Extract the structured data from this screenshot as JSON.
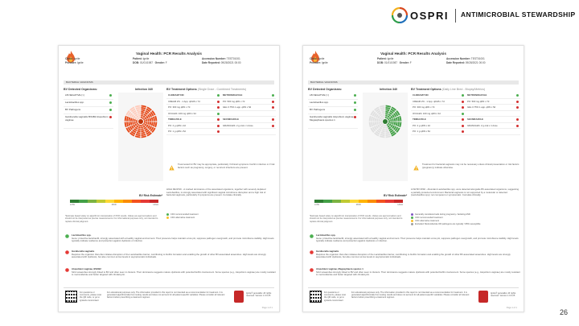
{
  "brand": {
    "name": "OSPRI",
    "tagline": "ANTIMICROBIAL STEWARDSHIP",
    "color": "#d94a1e"
  },
  "slide_number": "26",
  "reports": [
    {
      "title": "Vaginal Health: PCR Results Analysis",
      "clinic_label": "Clinic:",
      "clinic": "Ignite",
      "provider_label": "Provider:",
      "provider": "Ignite",
      "patient_label": "Patient:",
      "patient": "Ignite",
      "dob_label": "DOB:",
      "dob": "01/01/1987",
      "gender_label": "Gender:",
      "gender": "F",
      "accession_label": "Accession Number:",
      "accession": "TEST01001",
      "date_label": "Date Reported:",
      "date": "09/28/2021 00:00",
      "section": "BACTERIAL VAGINOSIS",
      "organisms_header": "BV Detected Organisms:",
      "organisms": [
        {
          "name": "LB NEGATIVE (>)",
          "status": "#4caf50"
        },
        {
          "name": "Lactobacillus spp.",
          "status": "#4caf50"
        },
        {
          "name": "BV Pathogens",
          "status": "#4caf50"
        },
        {
          "name": "Gardnerella vaginalis BVAB2 Atopobium vaginae",
          "status": "#d32f2f"
        }
      ],
      "infection_header": "Infection 340",
      "infection_level": 0.78,
      "treatment_header": "BV Treatment Options",
      "treatment_sub": "(Single Dose - Combined Treatments)",
      "treatments": [
        [
          "CLINDAMYCIN",
          "METRONIDAZOLE"
        ],
        [
          "CREAM 2% - 1 App. qDHS x 7d",
          "PO: 500 mg qDN x 7d"
        ],
        [
          "PO: 300 mg qDN x 7d",
          "GEL 0.75% 1 app. qDN x 5d"
        ],
        [
          "OVULES: 100 mg qDN x 3d",
          ""
        ],
        [
          "TINIDAZOLE",
          "SECNIDAZOLE"
        ],
        [
          "PO: 2 g qDN x 2d",
          "GRANULES: 2 g oral x 1 dose"
        ],
        [
          "PO: 1 g qDN x 5d",
          ""
        ]
      ],
      "treatment_status": [
        "#4caf50",
        "#d32f2f",
        "#d32f2f",
        "#4caf50",
        "#d32f2f",
        "#d32f2f",
        "#d32f2f"
      ],
      "treatment_note": "Treat tested for BV may be appropriate, particularly if clinical symptoms Confirm infection or if risk factors such as pregnancy, surgery, or recurrent infections are present.",
      "risk_header": "BV Risk Estimate*",
      "risk_low": "LOW",
      "risk_mod": "MOD",
      "risk_high": "HIGH",
      "risk_text": "HIGH RE RISK - A marked dominance of the associated organisms, together with severely depleted Lactobacillus, is strongly associated with significant vaginal microbiome disruption and a high risk of bacterial vaginosis, particularly if symptoms are present. Correlate clinically.",
      "legend": [
        "CDC recommended treatment",
        "CDC alternative treatment"
      ],
      "footnote": "*Estimate based solely on algorithmic interpretation of PCR results. Values are approximations and should not be interpreted as precise measurements. For informational purposes only, not intended to replace clinical judgment.",
      "descriptions": [
        {
          "name": "Lactobacillus spp.",
          "text": "Gene: protective lactobacilli, strongly associated with a healthy vaginal environment. Their presence helps maintain a low pH, suppress pathogen overgrowth, and promote microbiome stability. High levels typically indicate resilience and protection against dysbiosis or infection."
        },
        {
          "name": "Gardnerella vaginalis",
          "text": "Requires the organism that often initiates disruption of the Lactobacillus barrier, contributing to biofilm formation and enabling the growth of other BV-associated anaerobes. High levels are strongly associated with dysbiosis, but also common at low levels in asymptomatic individuals."
        },
        {
          "name": "Atopobium vaginae, BVAB2",
          "text": "Strict anaerobes strongly linked to BV and often seen in clusters. Their dominance suggests mature dysbiosis with potential biofilm involvement. Some species (e.g., Atopobium vaginae) are mostly resistant to metronidazole and better targeted with clindamycin."
        }
      ],
      "footer_a": "For questions or comments, please scan the QR code, or go to ignitedx.com/contact",
      "footer_b": "For educational purposes only. The information provided in this report is not intended as a recommendation for treatment. It is generated algorithmically from testing results and does not account for all patient-specific variables. Please consider all relevant factors before prescribing a treatment regimen.",
      "footer_c": "Ignite® genetalks: All rights reserved. Version 1.0.0.25",
      "page": "Page 1 of 1"
    },
    {
      "title": "Vaginal Health: PCR Results Analysis",
      "clinic_label": "Clinic:",
      "clinic": "Ignite",
      "provider_label": "Provider:",
      "provider": "Ignite",
      "patient_label": "Patient:",
      "patient": "Ignite",
      "dob_label": "DOB:",
      "dob": "01/01/1987",
      "gender_label": "Gender:",
      "gender": "F",
      "accession_label": "Accession Number:",
      "accession": "TEST01001",
      "date_label": "Date Reported:",
      "date": "09/28/2021 00:00",
      "section": "BACTERIAL VAGINOSIS",
      "organisms_header": "BV Detected Organisms:",
      "organisms": [
        {
          "name": "LB NEGATIVE (>)",
          "status": "#4caf50"
        },
        {
          "name": "Lactobacillus spp.",
          "status": "#4caf50"
        },
        {
          "name": "BV Pathogens",
          "status": "#4caf50"
        },
        {
          "name": "Gardnerella vaginalis Atopobium vaginae Megasphaera species 1",
          "status": "#d32f2f"
        }
      ],
      "infection_header": "Infection 340",
      "infection_level": 0.42,
      "treatment_header": "BV Treatment Options",
      "treatment_sub": "(Daily Line Bred - Biopsy/Metrics)",
      "treatments": [
        [
          "CLINDAMYCIN",
          "METRONIDAZOLE"
        ],
        [
          "CREAM 2% - 1 App. qDHS x 7d",
          "PO: 500 mg qDN x 7d"
        ],
        [
          "PO: 300 mg qDN x 7d",
          "GEL 0.75% 1 app. qDN x 5d"
        ],
        [
          "OVULES: 100 mg qDN x 3d",
          ""
        ],
        [
          "TINIDAZOLE",
          "SECNIDAZOLE"
        ],
        [
          "PO: 2 g qDN x 2d",
          "GRANULES: 2 g oral x 1 dose"
        ],
        [
          "PO: 1 g qDN x 5d",
          ""
        ]
      ],
      "treatment_status": [
        "#4caf50",
        "#d32f2f",
        "#d32f2f",
        "#4caf50",
        "#d32f2f",
        "#d32f2f",
        "#d32f2f"
      ],
      "treatment_note": "Treatment for bacterial vaginosis may not be necessary unless clinical presentation or risk factors (pregnancy) indicate otherwise.",
      "risk_header": "BV Risk Estimate*",
      "risk_low": "LOW",
      "risk_mod": "MOD",
      "risk_high": "HIGH",
      "risk_text": "LOW BV RISK - Abundant Lactobacillus spp. were detected alongside BV-associated organisms, suggesting a partially protected environment. Bacterial vaginosis is not supported by a molecular or detected (Lactobacillus spp.) not competent or symptomatic. Correlate clinically.",
      "legend": [
        "Generally considered safe during pregnancy / lactating AND",
        "CDC recommended treatment",
        "CDC alternative treatment",
        "Excluded: Metronidazole OR pathogens are typically >95% susceptible"
      ],
      "footnote": "*Estimate based solely on algorithmic interpretation of PCR results. Values are approximations and should not be interpreted as precise measurements. For informational purposes only, not intended to replace clinical judgment.",
      "descriptions": [
        {
          "name": "Lactobacillus spp.",
          "text": "Gene: protective lactobacilli, strongly associated with a healthy vaginal environment. Their presence helps maintain a low pH, suppress pathogen overgrowth, and promote microbiome stability. High levels typically indicate resilience and protection against dysbiosis or infection."
        },
        {
          "name": "Gardnerella vaginalis",
          "text": "Requires the organism that often initiates disruption of the Lactobacillus barrier, contributing to biofilm formation and enabling the growth of other BV-associated anaerobes. High levels are strongly associated with dysbiosis, but also common at low levels in asymptomatic individuals."
        },
        {
          "name": "Atopobium vaginae, Megasphaera species 1",
          "text": "Strict anaerobes strongly linked to BV and often seen in clusters. Their dominance suggests mature dysbiosis with potential biofilm involvement. Some species (e.g., Atopobium vaginae) are mostly resistant to metronidazole and better targeted with clindamycin."
        }
      ],
      "footer_a": "For questions or comments, please scan the QR code, or go to ignitedx.com/contact",
      "footer_b": "For educational purposes only. The information provided in this report is not intended as a recommendation for treatment. It is generated algorithmically from testing results and does not account for all patient-specific variables. Please consider all relevant factors before prescribing a treatment regimen.",
      "footer_c": "Ignite® genetalks: All rights reserved. Version 1.0.0.25",
      "page": "Page 1 of 1"
    }
  ]
}
